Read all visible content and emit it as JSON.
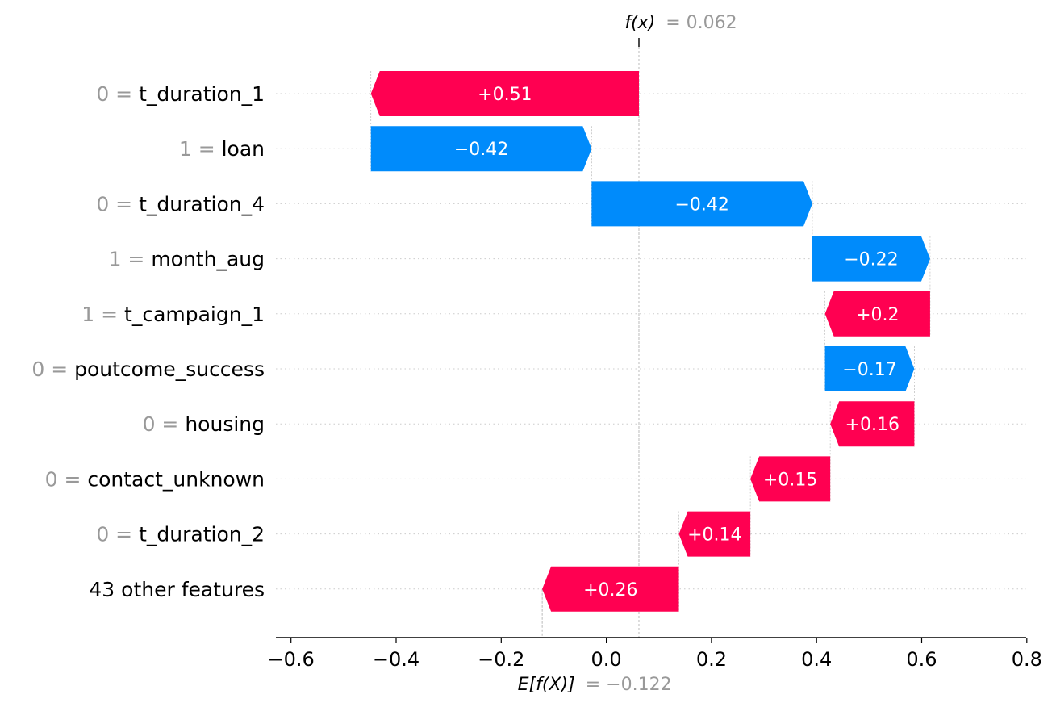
{
  "chart_data": {
    "type": "waterfall",
    "base_value": -0.122,
    "output_value": 0.062,
    "fx_label": "f(x)",
    "fx_value_text": "= 0.062",
    "efx_label": "E[f(X)]",
    "efx_value_text": "= −0.122",
    "xlim": [
      -0.63,
      0.8
    ],
    "x_ticks": [
      -0.6,
      -0.4,
      -0.2,
      0.0,
      0.2,
      0.4,
      0.6,
      0.8
    ],
    "x_tick_labels": [
      "−0.6",
      "−0.4",
      "−0.2",
      "0.0",
      "0.2",
      "0.4",
      "0.6",
      "0.8"
    ],
    "positive_color": "#ff0051",
    "negative_color": "#008bfb",
    "features": [
      {
        "value": "0",
        "name": "t_duration_1",
        "start": 0.062,
        "end": -0.448,
        "label": "+0.51",
        "sign": "positive"
      },
      {
        "value": "1",
        "name": "loan",
        "start": -0.448,
        "end": -0.028,
        "label": "−0.42",
        "sign": "negative"
      },
      {
        "value": "0",
        "name": "t_duration_4",
        "start": -0.028,
        "end": 0.392,
        "label": "−0.42",
        "sign": "negative"
      },
      {
        "value": "1",
        "name": "month_aug",
        "start": 0.392,
        "end": 0.616,
        "label": "−0.22",
        "sign": "negative"
      },
      {
        "value": "1",
        "name": "t_campaign_1",
        "start": 0.616,
        "end": 0.416,
        "label": "+0.2",
        "sign": "positive"
      },
      {
        "value": "0",
        "name": "poutcome_success",
        "start": 0.416,
        "end": 0.586,
        "label": "−0.17",
        "sign": "negative"
      },
      {
        "value": "0",
        "name": "housing",
        "start": 0.586,
        "end": 0.426,
        "label": "+0.16",
        "sign": "positive"
      },
      {
        "value": "0",
        "name": "contact_unknown",
        "start": 0.426,
        "end": 0.274,
        "label": "+0.15",
        "sign": "positive"
      },
      {
        "value": "0",
        "name": "t_duration_2",
        "start": 0.274,
        "end": 0.138,
        "label": "+0.14",
        "sign": "positive"
      },
      {
        "value": "",
        "name": "43 other features",
        "start": 0.138,
        "end": -0.122,
        "label": "+0.26",
        "sign": "positive"
      }
    ]
  }
}
